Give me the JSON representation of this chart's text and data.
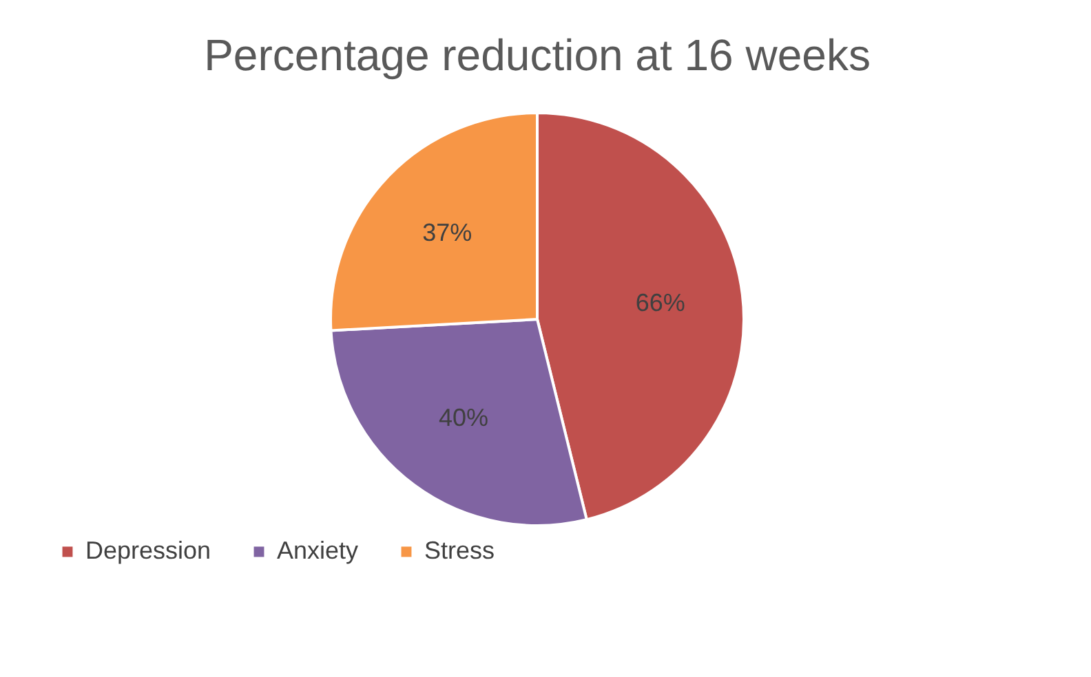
{
  "chart_data": {
    "type": "pie",
    "title": "Percentage reduction at 16 weeks",
    "categories": [
      "Depression",
      "Anxiety",
      "Stress"
    ],
    "values": [
      66,
      40,
      37
    ],
    "colors": [
      "#c0504d",
      "#8064a2",
      "#f79646"
    ],
    "value_labels": [
      "66%",
      "40%",
      "37%"
    ],
    "legend": "bottom"
  }
}
